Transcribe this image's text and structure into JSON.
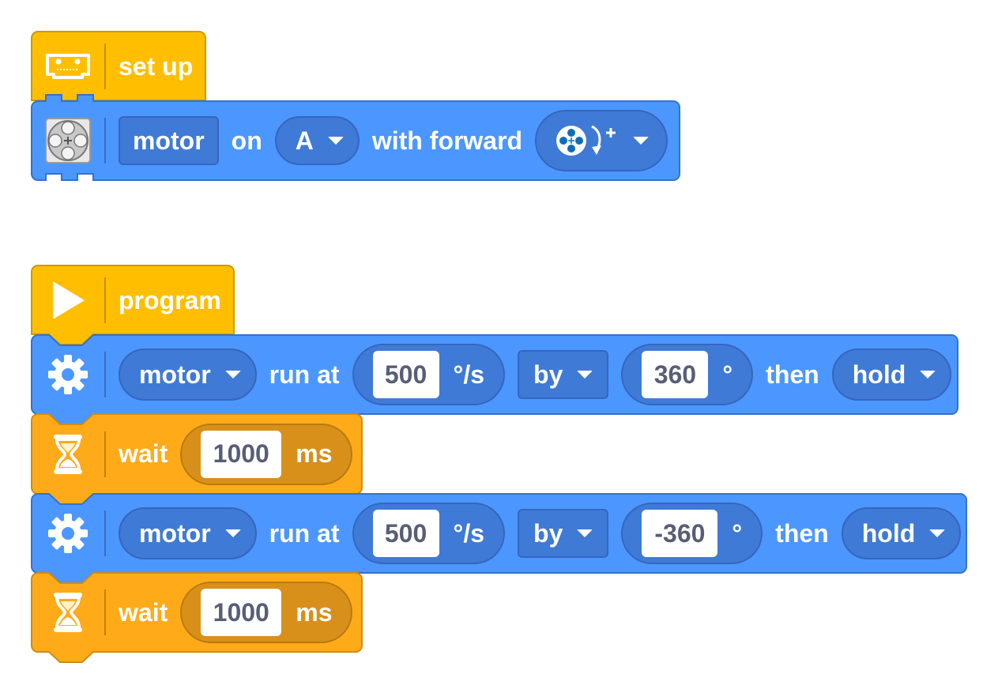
{
  "colors": {
    "blue_block": "#4c97ff",
    "blue_border": "#3373cc",
    "hat_yellow": "#ffbf00",
    "wait_orange": "#ffab19",
    "text_gray": "#575e75"
  },
  "setup": {
    "hat_label": "set up",
    "hat_icon": "hub-icon",
    "block": {
      "icon": "motor-port-icon",
      "device_label": "motor",
      "on_label": "on",
      "port": "A",
      "with_label": "with forward",
      "direction_icon": "motor-clockwise-icon"
    }
  },
  "program": {
    "hat_label": "program",
    "hat_icon": "play-icon",
    "blocks": [
      {
        "type": "motor-run",
        "icon": "gear-icon",
        "device": "motor",
        "run_label": "run at",
        "speed": "500",
        "speed_unit": "°/s",
        "by_label": "by",
        "amount": "360",
        "amount_unit": "°",
        "then_label": "then",
        "then_action": "hold"
      },
      {
        "type": "wait",
        "icon": "hourglass-icon",
        "label": "wait",
        "value": "1000",
        "unit": "ms"
      },
      {
        "type": "motor-run",
        "icon": "gear-icon",
        "device": "motor",
        "run_label": "run at",
        "speed": "500",
        "speed_unit": "°/s",
        "by_label": "by",
        "amount": "-360",
        "amount_unit": "°",
        "then_label": "then",
        "then_action": "hold"
      },
      {
        "type": "wait",
        "icon": "hourglass-icon",
        "label": "wait",
        "value": "1000",
        "unit": "ms"
      }
    ]
  }
}
